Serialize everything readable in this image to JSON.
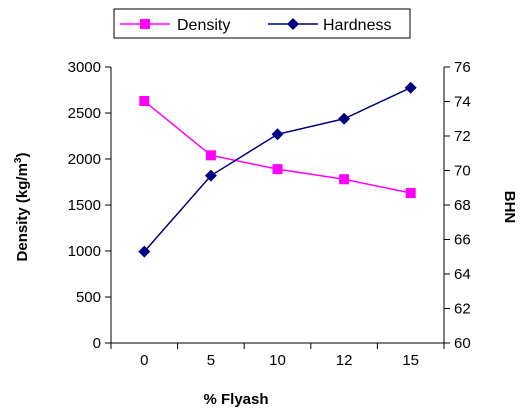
{
  "chart_data": {
    "type": "line",
    "categories": [
      "0",
      "5",
      "10",
      "12",
      "15"
    ],
    "xlabel": "% Flyash",
    "ylabel_left": "Density (kg/m",
    "ylabel_left_sup": "3",
    "ylabel_left_close": ")",
    "ylabel_right": "BHN",
    "ylim_left": [
      0,
      3000
    ],
    "ylim_right": [
      60,
      76
    ],
    "yticks_left": [
      "0",
      "500",
      "1000",
      "1500",
      "2000",
      "2500",
      "3000"
    ],
    "yticks_right": [
      "60",
      "62",
      "64",
      "66",
      "68",
      "70",
      "72",
      "74",
      "76"
    ],
    "grid": false,
    "legend_position": "top",
    "series": [
      {
        "name": "Density",
        "axis": "left",
        "color": "#ff00ff",
        "marker": "square",
        "values": [
          2630,
          2040,
          1890,
          1780,
          1630
        ]
      },
      {
        "name": "Hardness",
        "axis": "right",
        "color": "#000080",
        "marker": "diamond",
        "values": [
          65.3,
          69.7,
          72.1,
          73.0,
          74.8
        ]
      }
    ]
  }
}
